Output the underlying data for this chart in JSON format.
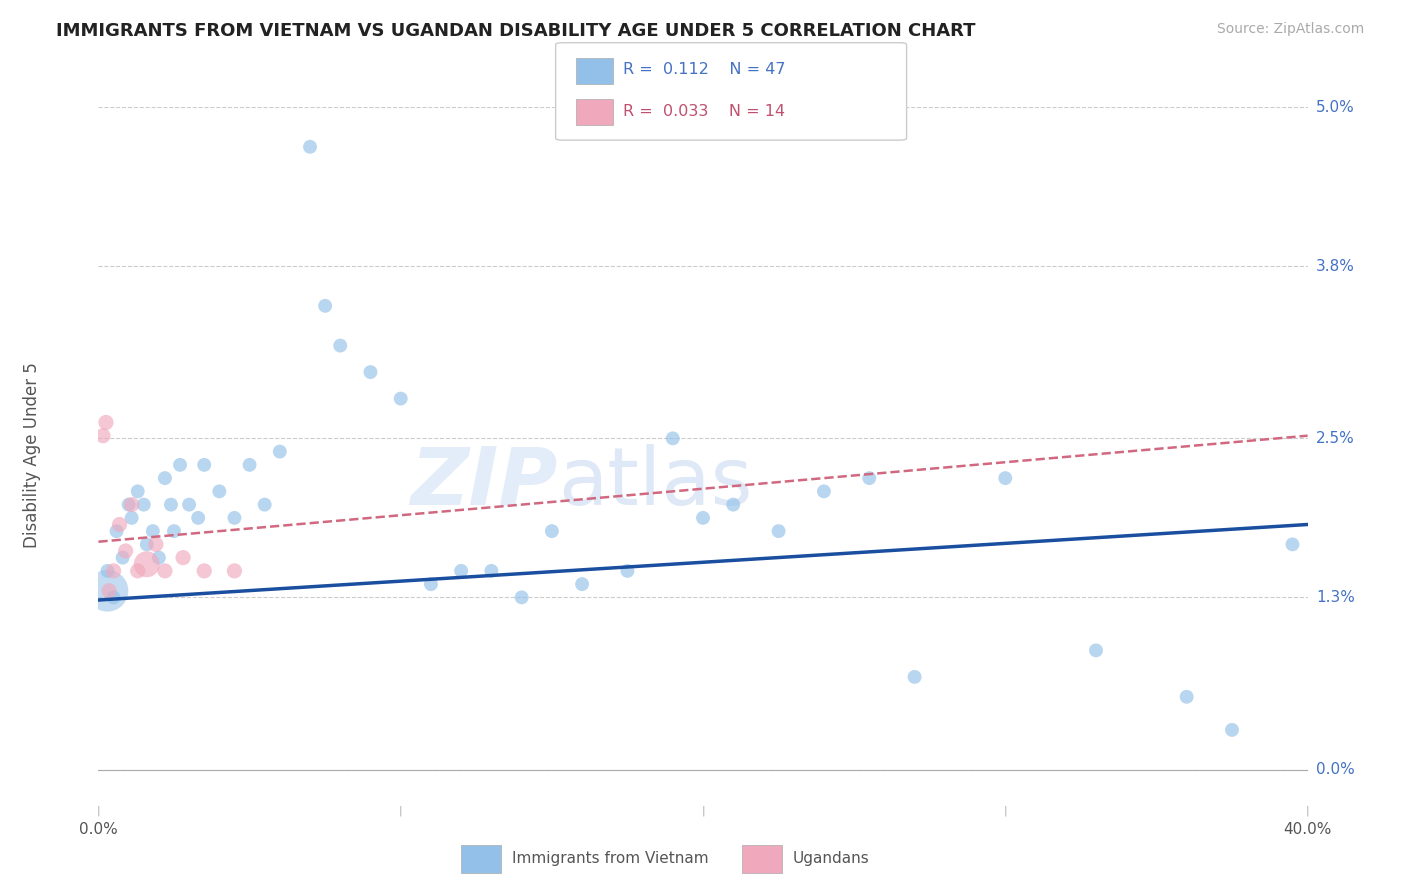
{
  "title": "IMMIGRANTS FROM VIETNAM VS UGANDAN DISABILITY AGE UNDER 5 CORRELATION CHART",
  "source": "Source: ZipAtlas.com",
  "ylabel": "Disability Age Under 5",
  "r1": 0.112,
  "n1": 47,
  "r2": 0.033,
  "n2": 14,
  "blue_color": "#92c0e8",
  "pink_color": "#f0a8bc",
  "blue_line_color": "#1a4fa0",
  "pink_line_color": "#d06880",
  "legend1_label": "Immigrants from Vietnam",
  "legend2_label": "Ugandans",
  "xmin": 0.0,
  "xmax": 40.0,
  "ymin": -0.25,
  "ymax": 5.0,
  "ytick_positions": [
    0.0,
    1.3,
    2.5,
    3.8,
    5.0
  ],
  "ytick_labels": [
    "0.0%",
    "1.3%",
    "2.5%",
    "3.8%",
    "5.0%"
  ],
  "xtick_positions": [
    0.0,
    10.0,
    20.0,
    30.0,
    40.0
  ],
  "xtick_labels": [
    "0.0%",
    "",
    "",
    "",
    "40.0%"
  ],
  "blue_line_x0": 0.0,
  "blue_line_y0": 1.28,
  "blue_line_x1": 40.0,
  "blue_line_y1": 1.85,
  "pink_line_x0": 0.0,
  "pink_line_y0": 1.72,
  "pink_line_x1": 40.0,
  "pink_line_y1": 2.52,
  "blue_x": [
    0.3,
    0.5,
    0.6,
    0.8,
    1.0,
    1.1,
    1.3,
    1.5,
    1.6,
    1.8,
    2.0,
    2.2,
    2.4,
    2.5,
    2.7,
    3.0,
    3.3,
    3.5,
    4.0,
    4.5,
    5.0,
    5.5,
    6.0,
    7.0,
    7.5,
    8.0,
    9.0,
    10.0,
    11.0,
    12.0,
    13.0,
    14.0,
    15.0,
    16.0,
    17.5,
    19.0,
    20.0,
    21.0,
    22.5,
    24.0,
    25.5,
    27.0,
    30.0,
    33.0,
    36.0,
    37.5,
    39.5
  ],
  "blue_y": [
    1.5,
    1.3,
    1.8,
    1.6,
    2.0,
    1.9,
    2.1,
    2.0,
    1.7,
    1.8,
    1.6,
    2.2,
    2.0,
    1.8,
    2.3,
    2.0,
    1.9,
    2.3,
    2.1,
    1.9,
    2.3,
    2.0,
    2.4,
    4.7,
    3.5,
    3.2,
    3.0,
    2.8,
    1.4,
    1.5,
    1.5,
    1.3,
    1.8,
    1.4,
    1.5,
    2.5,
    1.9,
    2.0,
    1.8,
    2.1,
    2.2,
    0.7,
    2.2,
    0.9,
    0.55,
    0.3,
    1.7
  ],
  "blue_size": [
    100,
    100,
    100,
    100,
    100,
    100,
    100,
    100,
    100,
    100,
    100,
    100,
    100,
    100,
    100,
    100,
    100,
    100,
    100,
    100,
    100,
    100,
    100,
    100,
    100,
    100,
    100,
    100,
    100,
    100,
    100,
    100,
    100,
    100,
    100,
    100,
    100,
    100,
    100,
    100,
    100,
    100,
    100,
    100,
    100,
    100,
    100
  ],
  "pink_x": [
    0.15,
    0.25,
    0.5,
    0.7,
    0.9,
    1.1,
    1.3,
    1.6,
    1.9,
    2.2,
    2.8,
    3.5,
    4.5,
    0.35
  ],
  "pink_y": [
    2.52,
    2.62,
    1.5,
    1.85,
    1.65,
    2.0,
    1.5,
    1.55,
    1.7,
    1.5,
    1.6,
    1.5,
    1.5,
    1.35
  ],
  "pink_size": [
    120,
    120,
    120,
    120,
    120,
    120,
    120,
    350,
    120,
    120,
    120,
    120,
    120,
    120
  ],
  "big_blue_x": 0.3,
  "big_blue_y": 1.35,
  "big_blue_size": 900
}
